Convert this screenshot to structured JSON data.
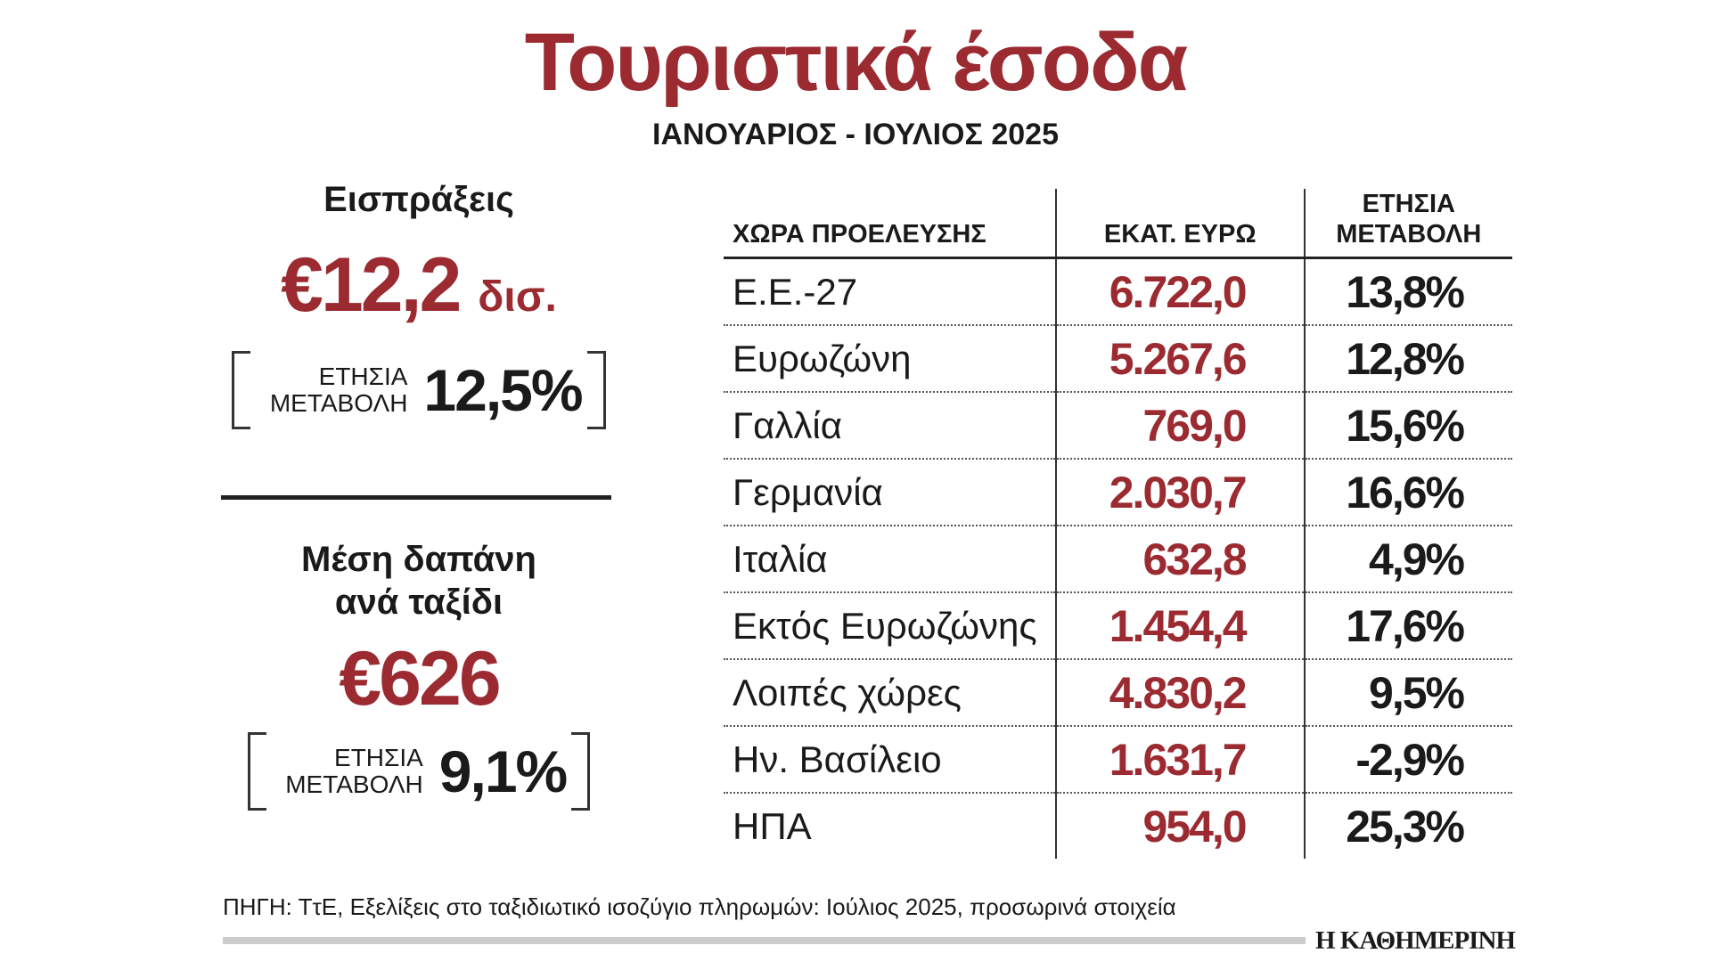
{
  "header": {
    "title": "Τουριστικά έσοδα",
    "subtitle": "ΙΑΝΟΥΑΡΙΟΣ - ΙΟΥΛΙΟΣ 2025"
  },
  "summary": [
    {
      "heading": "Εισπράξεις",
      "value": "€12,2",
      "unit": "δισ.",
      "change_label": "ΕΤΗΣΙΑ ΜΕΤΑΒΟΛΗ",
      "change_value": "12,5%"
    },
    {
      "heading": "Μέση δαπάνη ανά ταξίδι",
      "value": "€626",
      "change_label": "ΕΤΗΣΙΑ ΜΕΤΑΒΟΛΗ",
      "change_value": "9,1%"
    }
  ],
  "table": {
    "headers": [
      "ΧΩΡΑ ΠΡΟΕΛΕΥΣΗΣ",
      "ΕΚΑΤ. ΕΥΡΩ",
      "ΕΤΗΣΙΑ ΜΕΤΑΒΟΛΗ"
    ],
    "rows": [
      [
        "Ε.Ε.-27",
        "6.722,0",
        "13,8%"
      ],
      [
        "Ευρωζώνη",
        "5.267,6",
        "12,8%"
      ],
      [
        "Γαλλία",
        "769,0",
        "15,6%"
      ],
      [
        "Γερμανία",
        "2.030,7",
        "16,6%"
      ],
      [
        "Ιταλία",
        "632,8",
        "4,9%"
      ],
      [
        "Εκτός Ευρωζώνης",
        "1.454,4",
        "17,6%"
      ],
      [
        "Λοιπές χώρες",
        "4.830,2",
        "9,5%"
      ],
      [
        "Ην. Βασίλειο",
        "1.631,7",
        "-2,9%"
      ],
      [
        "ΗΠΑ",
        "954,0",
        "25,3%"
      ]
    ]
  },
  "footer": {
    "source": "ΠΗΓΗ: ΤτΕ, Εξελίξεις στο ταξιδιωτικό ισοζύγιο πληρωμών: Ιούλιος 2025, προσωρινά στοιχεία",
    "brand": "Η ΚΑΘΗΜΕΡΙΝΗ"
  }
}
